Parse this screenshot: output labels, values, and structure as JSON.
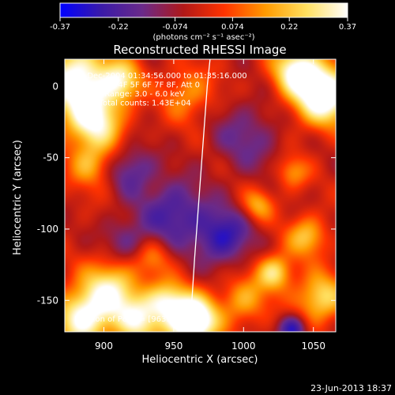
{
  "chart_data": {
    "type": "heatmap",
    "title": "Reconstructed RHESSI Image",
    "xlabel": "Heliocentric X (arcsec)",
    "ylabel": "Heliocentric Y (arcsec)",
    "xlim": [
      872,
      1066
    ],
    "ylim": [
      -172,
      19
    ],
    "x_ticks": [
      900,
      950,
      1000,
      1050
    ],
    "y_ticks": [
      0,
      -50,
      -100,
      -150
    ],
    "colorbar": {
      "label": "(photons cm⁻² s⁻¹ asec⁻²)",
      "range": [
        -0.37,
        0.37
      ],
      "ticks": [
        "-0.37",
        "-0.22",
        "-0.074",
        "0.074",
        "0.22",
        "0.37"
      ],
      "colormap": [
        "#0000ff",
        "#3a1aa8",
        "#6a2a8a",
        "#b01818",
        "#ff3300",
        "#ff9a00",
        "#ffe060",
        "#ffffff"
      ]
    },
    "annotations": [
      "29-Dec-2004 01:34:56.000 to 01:35:16.000",
      "Detectors: 4F 5F 6F 7F 8F, Att 0",
      "Energy Range: 3.0 - 6.0 keV",
      "Clean    Total counts: 1.43E+04"
    ],
    "peak_label": "Position of Peak = [963.1,-163.7]",
    "limb": [
      [
        976,
        19
      ],
      [
        974,
        0
      ],
      [
        971,
        -40
      ],
      [
        968,
        -80
      ],
      [
        965,
        -120
      ],
      [
        963,
        -150
      ],
      [
        962,
        -160
      ]
    ],
    "sources": [
      {
        "x": 880,
        "y": 5,
        "amp": 0.42,
        "s": 18
      },
      {
        "x": 893,
        "y": -25,
        "amp": 0.34,
        "s": 14
      },
      {
        "x": 890,
        "y": -55,
        "amp": 0.2,
        "s": 11
      },
      {
        "x": 912,
        "y": 4,
        "amp": 0.28,
        "s": 10
      },
      {
        "x": 960,
        "y": -5,
        "amp": 0.18,
        "s": 13
      },
      {
        "x": 905,
        "y": -140,
        "amp": 0.3,
        "s": 14
      },
      {
        "x": 885,
        "y": -162,
        "amp": 0.4,
        "s": 14
      },
      {
        "x": 925,
        "y": -163,
        "amp": 0.32,
        "s": 13
      },
      {
        "x": 963,
        "y": -164,
        "amp": 0.58,
        "s": 12
      },
      {
        "x": 945,
        "y": -150,
        "amp": 0.26,
        "s": 10
      },
      {
        "x": 1000,
        "y": -150,
        "amp": 0.2,
        "s": 12
      },
      {
        "x": 1022,
        "y": -130,
        "amp": 0.3,
        "s": 9
      },
      {
        "x": 1045,
        "y": -105,
        "amp": 0.24,
        "s": 10
      },
      {
        "x": 1055,
        "y": -148,
        "amp": 0.3,
        "s": 12
      },
      {
        "x": 1057,
        "y": -5,
        "amp": 0.5,
        "s": 15
      },
      {
        "x": 1037,
        "y": 12,
        "amp": 0.34,
        "s": 12
      },
      {
        "x": 1010,
        "y": -83,
        "amp": 0.2,
        "s": 8
      },
      {
        "x": 1035,
        "y": -60,
        "amp": 0.18,
        "s": 8
      },
      {
        "x": 935,
        "y": -120,
        "amp": 0.14,
        "s": 9
      },
      {
        "x": 950,
        "y": -88,
        "amp": -0.22,
        "s": 16
      },
      {
        "x": 985,
        "y": -105,
        "amp": -0.26,
        "s": 14
      },
      {
        "x": 920,
        "y": -58,
        "amp": -0.18,
        "s": 12
      },
      {
        "x": 1002,
        "y": -35,
        "amp": -0.14,
        "s": 18
      },
      {
        "x": 1035,
        "y": -170,
        "amp": -0.28,
        "s": 7
      },
      {
        "x": 915,
        "y": -108,
        "amp": -0.14,
        "s": 12
      }
    ]
  },
  "footer": {
    "timestamp": "23-Jun-2013 18:37"
  }
}
